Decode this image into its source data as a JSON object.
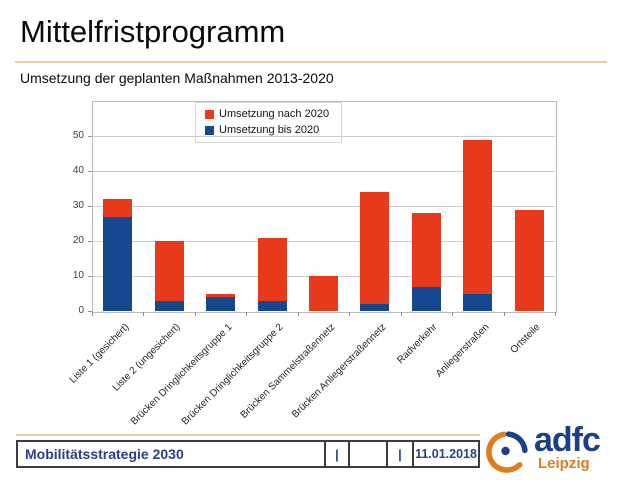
{
  "slide": {
    "title": "Mittelfristprogramm",
    "subtitle": "Umsetzung der geplanten Maßnahmen 2013-2020"
  },
  "chart_data": {
    "type": "bar",
    "stacked": true,
    "categories": [
      "Liste 1 (gesichert)",
      "Liste 2 (ungesichert)",
      "Brücken Dringlichkeitsgruppe 1",
      "Brücken Dringlichkeitsgruppe 2",
      "Brücken Sammelstraßennetz",
      "Brücken Anliegerstraßennetz",
      "Radverkehr",
      "Anliegerstraßen",
      "Ortsteile"
    ],
    "series": [
      {
        "name": "Umsetzung bis 2020",
        "color": "#17478e",
        "values": [
          27,
          3,
          4,
          3,
          0,
          2,
          7,
          5,
          0
        ]
      },
      {
        "name": "Umsetzung nach 2020",
        "color": "#e8391b",
        "values": [
          5,
          17,
          1,
          18,
          10,
          32,
          21,
          44,
          29
        ]
      }
    ],
    "totals": [
      32,
      20,
      5,
      21,
      10,
      34,
      28,
      49,
      29
    ],
    "title": "",
    "xlabel": "",
    "ylabel": "",
    "ylim": [
      0,
      60
    ],
    "yticks": [
      0,
      10,
      20,
      30,
      40,
      50
    ],
    "grid": true,
    "legend_order": [
      "Umsetzung nach 2020",
      "Umsetzung bis 2020"
    ],
    "legend_position": "top-center-inside",
    "xlabel_rotation_deg": 45
  },
  "footer": {
    "project": "Mobilitätsstrategie 2030",
    "cells": [
      "|",
      "",
      "|"
    ],
    "date": "11.01.2018",
    "logo": {
      "org": "adfc",
      "city": "Leipzig"
    }
  },
  "colors": {
    "bar_red": "#e8391b",
    "bar_blue": "#17478e",
    "accent_rule": "#e9cda4",
    "footer_text": "#2b3f87",
    "logo_navy": "#1c4086",
    "logo_orange": "#e07c1f"
  }
}
